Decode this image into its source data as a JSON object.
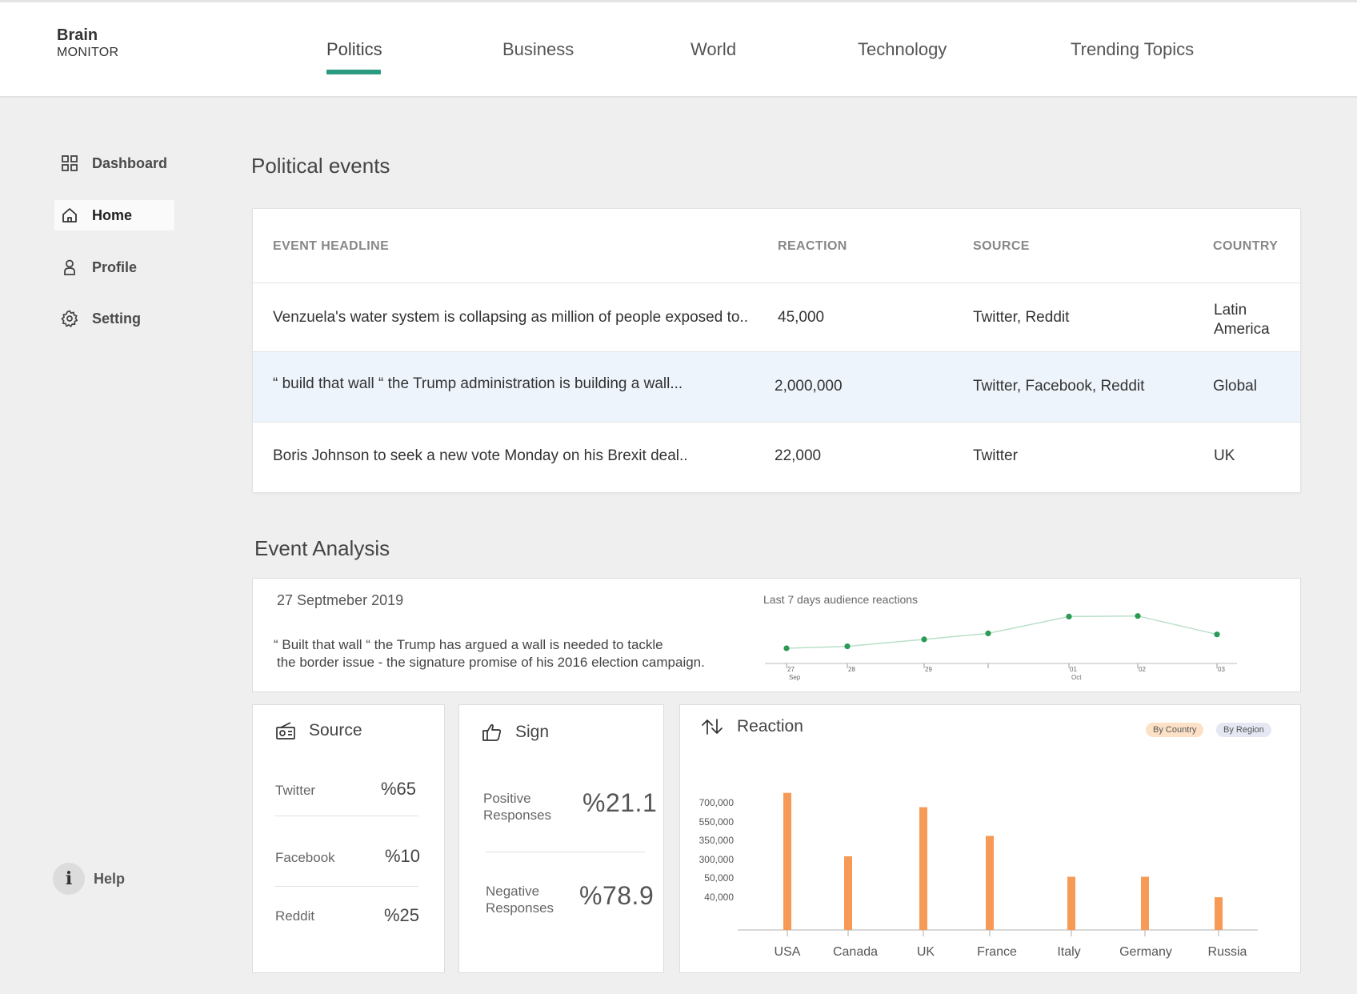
{
  "brand": {
    "line1": "Brain",
    "line2": "MONITOR"
  },
  "nav": {
    "tabs": [
      "Politics",
      "Business",
      "World",
      "Technology",
      "Trending Topics"
    ],
    "active": "Politics"
  },
  "sidebar": {
    "items": [
      {
        "label": "Dashboard",
        "icon": "grid-icon"
      },
      {
        "label": "Home",
        "icon": "home-icon",
        "active": true
      },
      {
        "label": "Profile",
        "icon": "user-icon"
      },
      {
        "label": "Setting",
        "icon": "gear-icon"
      }
    ],
    "help_label": "Help"
  },
  "events": {
    "title": "Political events",
    "headers": [
      "EVENT HEADLINE",
      "REACTION",
      "SOURCE",
      "COUNTRY"
    ],
    "rows": [
      {
        "headline": "Venzuela's water system is collapsing as million of people exposed to..",
        "reaction": "45,000",
        "source": "Twitter, Reddit",
        "country": "Latin\nAmerica"
      },
      {
        "headline": "“ build that wall “ the Trump administration is building a wall...",
        "reaction": "2,000,000",
        "source": "Twitter, Facebook, Reddit",
        "country": "Global"
      },
      {
        "headline": "Boris Johnson to seek a new vote Monday on his Brexit deal..",
        "reaction": "22,000",
        "source": "Twitter",
        "country": "UK"
      }
    ]
  },
  "analysis": {
    "title": "Event Analysis",
    "date": "27 Septmeber  2019",
    "quote_line1": "“ Built that wall “ the Trump has argued a wall is needed to tackle",
    "quote_line2": "the border issue - the signature promise of his 2016 election campaign.",
    "chart_label": "Last 7 days audience reactions"
  },
  "source_card": {
    "title": "Source",
    "items": [
      {
        "label": "Twitter",
        "value": "%65"
      },
      {
        "label": "Facebook",
        "value": "%10"
      },
      {
        "label": "Reddit",
        "value": "%25"
      }
    ]
  },
  "sign_card": {
    "title": "Sign",
    "positive_l1": "Positive",
    "positive_l2": "Responses",
    "positive_value": "%21.1",
    "negative_l1": "Negative",
    "negative_l2": "Responses",
    "negative_value": "%78.9"
  },
  "reaction_card": {
    "title": "Reaction",
    "filters": [
      "By Country",
      "By Region"
    ],
    "active_filter": "By Country"
  },
  "colors": {
    "accent": "#2a9a80",
    "bar": "#f79a56",
    "line": "#b9dfc8",
    "point": "#2a9a55",
    "row_highlight": "#eef4fc"
  },
  "chart_data": [
    {
      "type": "line",
      "title": "Last 7 days audience reactions",
      "x": [
        "27 Sep",
        "28",
        "29",
        "",
        "01 Oct",
        "02",
        "03"
      ],
      "x_ticks": [
        {
          "top": "27",
          "bottom": "Sep"
        },
        {
          "top": "28",
          "bottom": ""
        },
        {
          "top": "29",
          "bottom": ""
        },
        {
          "top": "",
          "bottom": ""
        },
        {
          "top": "01",
          "bottom": "Oct"
        },
        {
          "top": "02",
          "bottom": ""
        },
        {
          "top": "03",
          "bottom": ""
        }
      ],
      "values": [
        0.08,
        0.12,
        0.26,
        0.38,
        0.72,
        0.73,
        0.36
      ],
      "ylim": [
        0,
        1
      ],
      "grid": false
    },
    {
      "type": "bar",
      "categories": [
        "USA",
        "Canada",
        "UK",
        "France",
        "Italy",
        "Germany",
        "Russia"
      ],
      "y_tick_labels": [
        "40,000",
        "50,000",
        "300,000",
        "350,000",
        "550,000",
        "700,000"
      ],
      "values": [
        6.7,
        3.6,
        6.0,
        4.6,
        2.6,
        2.6,
        1.6
      ],
      "ylim": [
        0,
        7
      ],
      "grid": false
    }
  ]
}
